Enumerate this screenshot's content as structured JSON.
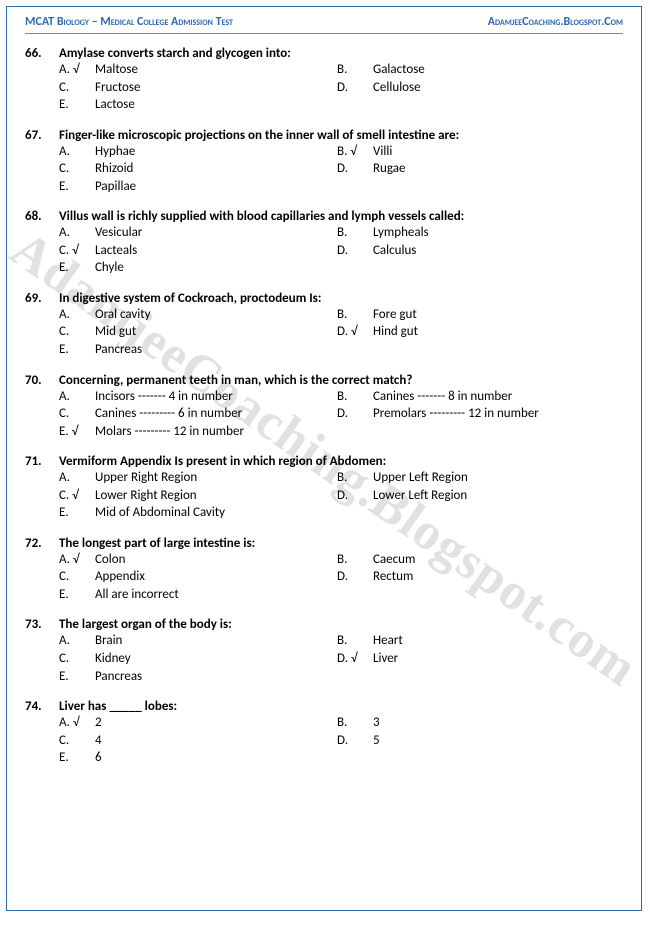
{
  "header": {
    "left": "MCAT Biology – Medical College Admission Test",
    "right": "AdamjeeCoaching.Blogspot.Com"
  },
  "watermark": "AdamjeeCoaching.Blogspot.com",
  "colors": {
    "border": "#2e6ab0",
    "header_text": "#2e6ab0",
    "watermark": "rgba(120,120,120,0.22)"
  },
  "questions": [
    {
      "num": "66.",
      "text": "Amylase converts starch and glycogen into:",
      "opts": [
        {
          "l": "A. √",
          "t": "Maltose",
          "c": true
        },
        {
          "l": "B.",
          "t": "Galactose"
        },
        {
          "l": "C.",
          "t": "Fructose"
        },
        {
          "l": "D.",
          "t": "Cellulose"
        },
        {
          "l": "E.",
          "t": "Lactose"
        }
      ]
    },
    {
      "num": "67.",
      "text": "Finger-like microscopic projections on the inner wall of smell intestine are:",
      "opts": [
        {
          "l": "A.",
          "t": "Hyphae"
        },
        {
          "l": "B. √",
          "t": "Villi",
          "c": true
        },
        {
          "l": "C.",
          "t": "Rhizoid"
        },
        {
          "l": "D.",
          "t": "Rugae"
        },
        {
          "l": "E.",
          "t": "Papillae"
        }
      ]
    },
    {
      "num": "68.",
      "text": "Villus wall is richly supplied with blood capillaries and lymph vessels called:",
      "opts": [
        {
          "l": "A.",
          "t": "Vesicular"
        },
        {
          "l": "B.",
          "t": "Lympheals"
        },
        {
          "l": "C. √",
          "t": "Lacteals",
          "c": true
        },
        {
          "l": "D.",
          "t": "Calculus"
        },
        {
          "l": "E.",
          "t": "Chyle"
        }
      ]
    },
    {
      "num": "69.",
      "text": "In digestive system of Cockroach, proctodeum Is:",
      "opts": [
        {
          "l": "A.",
          "t": "Oral cavity"
        },
        {
          "l": "B.",
          "t": "Fore gut"
        },
        {
          "l": "C.",
          "t": "Mid gut"
        },
        {
          "l": "D. √",
          "t": "Hind gut",
          "c": true
        },
        {
          "l": "E.",
          "t": "Pancreas"
        }
      ]
    },
    {
      "num": "70.",
      "text": "Concerning, permanent teeth in man, which is the correct match?",
      "opts": [
        {
          "l": "A.",
          "t": "Incisors ------- 4 in number"
        },
        {
          "l": "B.",
          "t": "Canines ------- 8 in number"
        },
        {
          "l": "C.",
          "t": "Canines --------- 6 in number"
        },
        {
          "l": "D.",
          "t": "Premolars --------- 12 in number"
        },
        {
          "l": "E. √",
          "t": "Molars --------- 12 in number",
          "c": true
        }
      ]
    },
    {
      "num": "71.",
      "text": "Vermiform Appendix Is present in which region of Abdomen:",
      "opts": [
        {
          "l": "A.",
          "t": "Upper Right Region"
        },
        {
          "l": "B.",
          "t": "Upper Left Region"
        },
        {
          "l": "C. √",
          "t": "Lower Right Region",
          "c": true
        },
        {
          "l": "D.",
          "t": "Lower Left Region"
        },
        {
          "l": "E.",
          "t": "Mid of Abdominal Cavity"
        }
      ]
    },
    {
      "num": "72.",
      "text": "The longest part of large intestine is:",
      "opts": [
        {
          "l": "A. √",
          "t": "Colon",
          "c": true
        },
        {
          "l": "B.",
          "t": "Caecum"
        },
        {
          "l": "C.",
          "t": "Appendix"
        },
        {
          "l": "D.",
          "t": "Rectum"
        },
        {
          "l": "E.",
          "t": "All are incorrect"
        }
      ]
    },
    {
      "num": "73.",
      "text": "The largest organ of the body is:",
      "opts": [
        {
          "l": "A.",
          "t": "Brain"
        },
        {
          "l": "B.",
          "t": "Heart"
        },
        {
          "l": "C.",
          "t": "Kidney"
        },
        {
          "l": "D. √",
          "t": "Liver",
          "c": true
        },
        {
          "l": "E.",
          "t": "Pancreas"
        }
      ]
    },
    {
      "num": "74.",
      "text": "Liver has _____ lobes:",
      "opts": [
        {
          "l": "A. √",
          "t": "2",
          "c": true
        },
        {
          "l": "B.",
          "t": "3"
        },
        {
          "l": "C.",
          "t": "4"
        },
        {
          "l": "D.",
          "t": "5"
        },
        {
          "l": "E.",
          "t": "6"
        }
      ]
    }
  ]
}
